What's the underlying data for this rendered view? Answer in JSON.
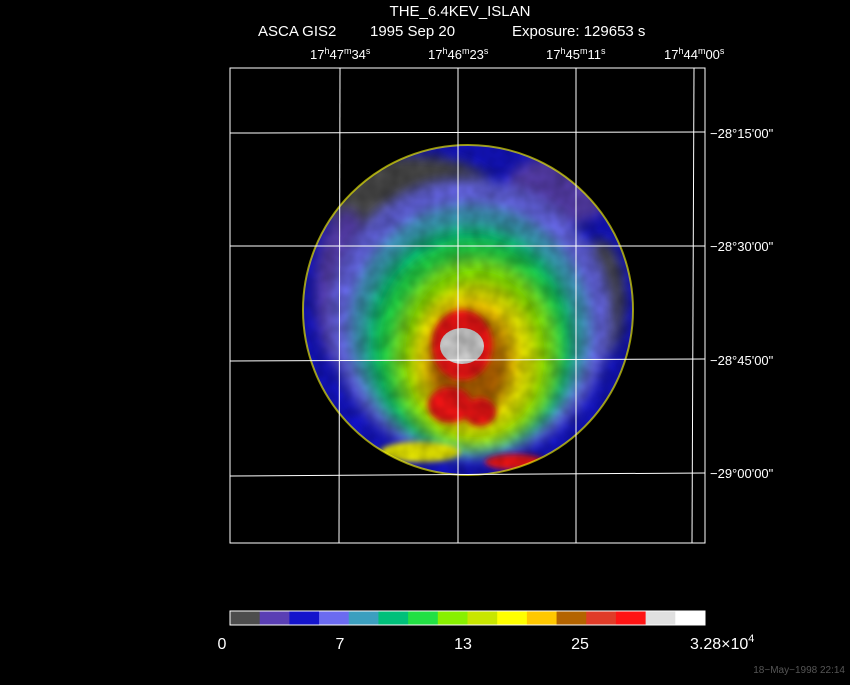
{
  "title": "THE_6.4KEV_ISLAN",
  "header": {
    "instrument": "ASCA GIS2",
    "date": "1995 Sep 20",
    "exposure": "Exposure: 129653 s"
  },
  "ra_labels": [
    {
      "h": "17",
      "m": "47",
      "s": "34"
    },
    {
      "h": "17",
      "m": "46",
      "s": "23"
    },
    {
      "h": "17",
      "m": "45",
      "s": "11"
    },
    {
      "h": "17",
      "m": "44",
      "s": "00"
    }
  ],
  "dec_labels": [
    "−28°15'00\"",
    "−28°30'00\"",
    "−28°45'00\"",
    "−29°00'00\""
  ],
  "colorbar": {
    "colors": [
      "#4d4d4d",
      "#5a3fb4",
      "#1414cc",
      "#6b6bf0",
      "#3c9fbf",
      "#00c07a",
      "#22e044",
      "#88f000",
      "#c8e600",
      "#ffff00",
      "#ffc800",
      "#b46400",
      "#e03c28",
      "#ff1414",
      "#e0e0e0",
      "#ffffff"
    ],
    "labels": [
      "0",
      "7",
      "13",
      "25",
      "3.28×10"
    ],
    "max_exponent": "4"
  },
  "timestamp": "18−May−1998 22:14"
}
